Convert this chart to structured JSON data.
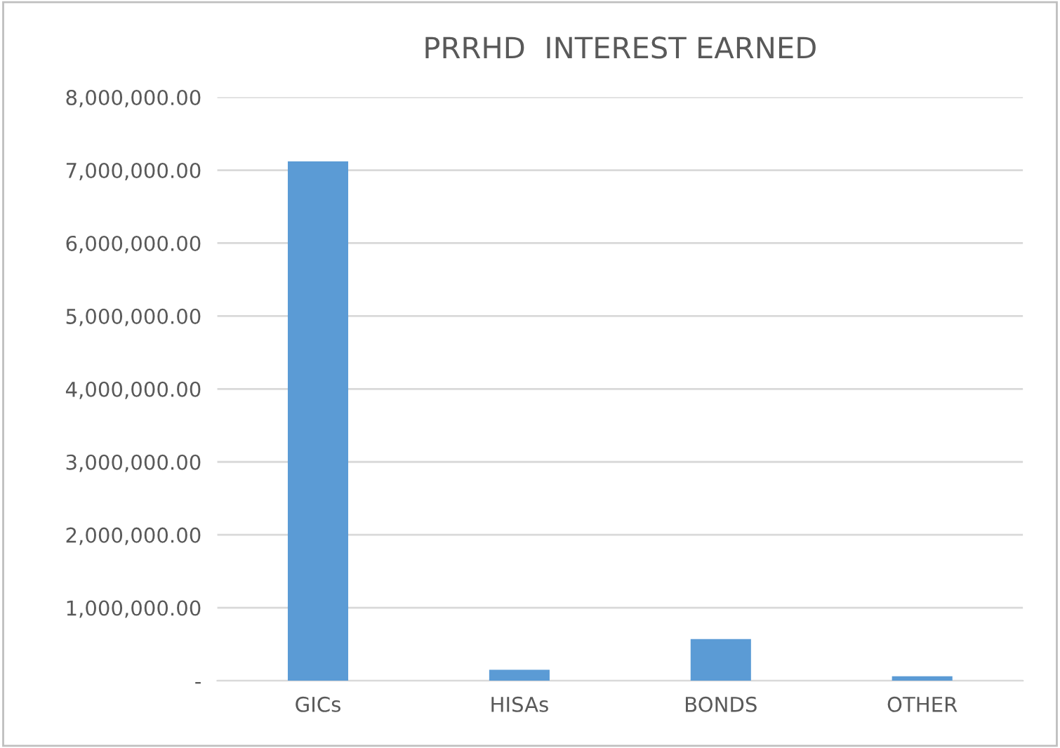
{
  "chart_data": {
    "type": "bar",
    "title": "PRRHD  INTEREST EARNED",
    "categories": [
      "GICs",
      "HISAs",
      "BONDS",
      "OTHER"
    ],
    "values": [
      7120000,
      150000,
      570000,
      60000
    ],
    "color": "#5b9bd5",
    "ylim": [
      0,
      8000000
    ],
    "yticks": [
      {
        "value": 0,
        "label": "-"
      },
      {
        "value": 1000000,
        "label": "1,000,000.00"
      },
      {
        "value": 2000000,
        "label": "2,000,000.00"
      },
      {
        "value": 3000000,
        "label": "3,000,000.00"
      },
      {
        "value": 4000000,
        "label": "4,000,000.00"
      },
      {
        "value": 5000000,
        "label": "5,000,000.00"
      },
      {
        "value": 6000000,
        "label": "6,000,000.00"
      },
      {
        "value": 7000000,
        "label": "7,000,000.00"
      },
      {
        "value": 8000000,
        "label": "8,000,000.00"
      }
    ],
    "grid": "y"
  }
}
